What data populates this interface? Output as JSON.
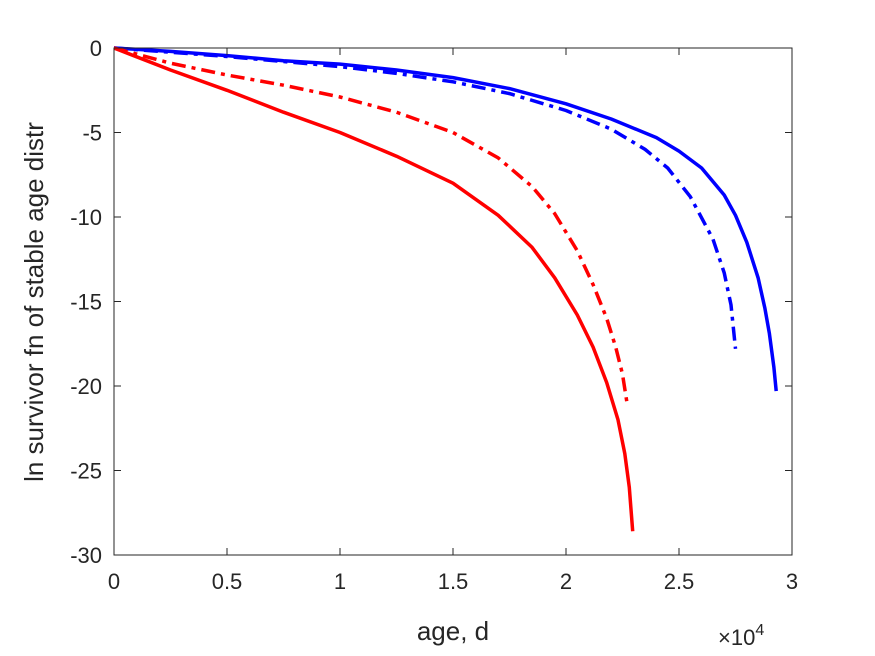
{
  "chart_data": {
    "type": "line",
    "title": "",
    "xlabel": "age, d",
    "ylabel": "ln survivor fn of stable age distr",
    "x_exponent_label": "×10",
    "x_exponent_power": "4",
    "xlim": [
      0,
      30000
    ],
    "ylim": [
      -30,
      0
    ],
    "x_ticks": [
      0,
      5000,
      10000,
      15000,
      20000,
      25000,
      30000
    ],
    "x_tick_labels": [
      "0",
      "0.5",
      "1",
      "1.5",
      "2",
      "2.5",
      "3"
    ],
    "y_ticks": [
      0,
      -5,
      -10,
      -15,
      -20,
      -25,
      -30
    ],
    "y_tick_labels": [
      "0",
      "-5",
      "-10",
      "-15",
      "-20",
      "-25",
      "-30"
    ],
    "grid": false,
    "series": [
      {
        "color": "#0000ff",
        "line_style": "solid",
        "x": [
          0,
          2500,
          5000,
          7500,
          10000,
          12500,
          15000,
          17500,
          20000,
          22000,
          24000,
          25000,
          26000,
          27000,
          27500,
          28000,
          28500,
          28800,
          29000,
          29200,
          29300
        ],
        "y": [
          0,
          -0.2,
          -0.45,
          -0.75,
          -0.95,
          -1.3,
          -1.75,
          -2.4,
          -3.3,
          -4.2,
          -5.3,
          -6.1,
          -7.1,
          -8.7,
          -9.9,
          -11.5,
          -13.6,
          -15.4,
          -16.9,
          -18.9,
          -20.3
        ]
      },
      {
        "color": "#0000ff",
        "line_style": "dashdot",
        "x": [
          0,
          2500,
          5000,
          7500,
          10000,
          12500,
          15000,
          17500,
          20000,
          22000,
          23500,
          24500,
          25500,
          26500,
          27000,
          27300,
          27500
        ],
        "y": [
          0,
          -0.25,
          -0.5,
          -0.8,
          -1.1,
          -1.5,
          -2.0,
          -2.7,
          -3.7,
          -4.8,
          -6.0,
          -7.1,
          -8.8,
          -11.3,
          -13.3,
          -15.2,
          -17.8
        ]
      },
      {
        "color": "#ff0000",
        "line_style": "dashdot",
        "x": [
          0,
          2500,
          5000,
          7500,
          10000,
          12500,
          15000,
          17000,
          18500,
          19500,
          20500,
          21200,
          21800,
          22200,
          22500,
          22700
        ],
        "y": [
          0,
          -0.9,
          -1.6,
          -2.2,
          -2.9,
          -3.8,
          -5.0,
          -6.5,
          -8.2,
          -9.8,
          -12.0,
          -14.0,
          -16.0,
          -17.7,
          -19.3,
          -21.0
        ]
      },
      {
        "color": "#ff0000",
        "line_style": "solid",
        "x": [
          0,
          2500,
          5000,
          7500,
          10000,
          12500,
          15000,
          17000,
          18500,
          19500,
          20500,
          21200,
          21800,
          22300,
          22600,
          22800,
          22950
        ],
        "y": [
          0,
          -1.3,
          -2.5,
          -3.8,
          -5.0,
          -6.4,
          -8.0,
          -9.9,
          -11.8,
          -13.6,
          -15.8,
          -17.7,
          -19.8,
          -22.0,
          -24.0,
          -26.0,
          -28.6
        ]
      }
    ]
  }
}
